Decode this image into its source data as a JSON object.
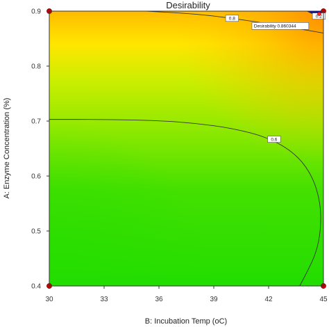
{
  "chart_data": {
    "type": "contour",
    "title": "Desirability",
    "xlabel": "B: Incubation Temp (oC)",
    "ylabel": "A: Enzyme Concentration (%)",
    "xlim": [
      30,
      45
    ],
    "ylim": [
      0.4,
      0.9
    ],
    "x_ticks": [
      30,
      33,
      36,
      39,
      42,
      45
    ],
    "y_ticks": [
      0.4,
      0.5,
      0.6,
      0.7,
      0.8,
      0.9
    ],
    "x_tick_labels": [
      "30",
      "33",
      "36",
      "39",
      "42",
      "45"
    ],
    "y_tick_labels": [
      "0.4",
      "0.5",
      "0.6",
      "0.7",
      "0.8",
      "0.9"
    ],
    "colormap": [
      "#22dd00",
      "#66e600",
      "#aaee00",
      "#eeee00",
      "#ffcc00",
      "#ff9900",
      "#0000cc"
    ],
    "contours": [
      {
        "level_label": "0.8",
        "points": [
          [
            35.3,
            0.9
          ],
          [
            38,
            0.895
          ],
          [
            40,
            0.887
          ],
          [
            42,
            0.877
          ],
          [
            44,
            0.866
          ],
          [
            45,
            0.86
          ]
        ]
      },
      {
        "level_label": "0.6",
        "points": [
          [
            30,
            0.703
          ],
          [
            33,
            0.703
          ],
          [
            36,
            0.701
          ],
          [
            38,
            0.696
          ],
          [
            40,
            0.687
          ],
          [
            42,
            0.67
          ],
          [
            43.5,
            0.64
          ],
          [
            44.4,
            0.6
          ],
          [
            44.85,
            0.55
          ],
          [
            44.85,
            0.5
          ],
          [
            44.6,
            0.46
          ],
          [
            44.1,
            0.425
          ],
          [
            43.7,
            0.4
          ]
        ]
      },
      {
        "level_label": "0.2",
        "points": [
          [
            44.1,
            0.9
          ],
          [
            44.75,
            0.89
          ],
          [
            45,
            0.885
          ]
        ]
      }
    ],
    "contour_label_positions": [
      {
        "label": "0.8",
        "x": 40.0,
        "y": 0.887
      },
      {
        "label": "0.6",
        "x": 42.3,
        "y": 0.667
      },
      {
        "label": "0.2",
        "x": 44.75,
        "y": 0.891
      }
    ],
    "optimum": {
      "x": 45,
      "y": 0.9,
      "label": "Desirability",
      "value": "0.860344",
      "label_x": 41.2,
      "label_y": 0.873
    },
    "design_points": [
      [
        30,
        0.4
      ],
      [
        30,
        0.9
      ],
      [
        45,
        0.4
      ],
      [
        45,
        0.9
      ]
    ],
    "design_point_color": "#cc0000"
  }
}
